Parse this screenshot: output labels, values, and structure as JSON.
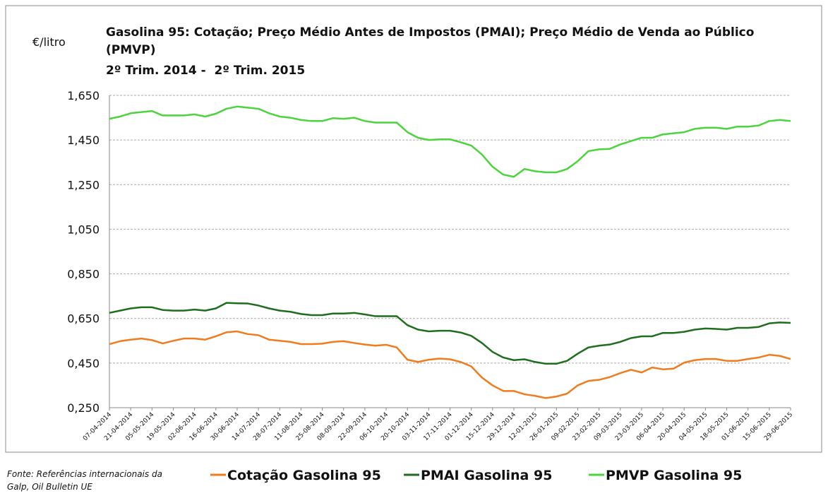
{
  "chart_data": {
    "type": "line",
    "title": "Gasolina 95: Cotação; Preço  Médio Antes de Impostos (PMAI); Preço Médio de Venda ao Público (PMVP)",
    "subtitle": "2º Trim. 2014 -  2º Trim. 2015",
    "y_axis_label": "€/litro",
    "source": "Fonte: Referências internacionais da Galp, Oil Bulletin UE",
    "categories": [
      "07-04-2014",
      null,
      "21-04-2014",
      null,
      "05-05-2014",
      null,
      "19-05-2014",
      null,
      "02-06-2014",
      null,
      "16-06-2014",
      null,
      "30-06-2014",
      null,
      "14-07-2014",
      null,
      "28-07-2014",
      null,
      "11-08-2014",
      null,
      "25-08-2014",
      null,
      "08-09-2014",
      null,
      "22-09-2014",
      null,
      "06-10-2014",
      null,
      "20-10-2014",
      null,
      "03-11-2014",
      null,
      "17-11-2014",
      null,
      "01-12-2014",
      null,
      "15-12-2014",
      null,
      "29-12-2014",
      null,
      "12-01-2015",
      null,
      "26-01-2015",
      null,
      "09-02-2015",
      null,
      "23-02-2015",
      null,
      "09-03-2015",
      null,
      "23-03-2015",
      null,
      "06-04-2015",
      null,
      "20-04-2015",
      null,
      "04-05-2015",
      null,
      "18-05-2015",
      null,
      "01-06-2015",
      null,
      "15-06-2015",
      null,
      "29-06-2015"
    ],
    "series": [
      {
        "name": "Cotação Gasolina 95",
        "color": "#f07c1e",
        "values": [
          0.535,
          0.548,
          0.555,
          0.56,
          0.553,
          0.538,
          0.55,
          0.56,
          0.56,
          0.555,
          0.57,
          0.588,
          0.592,
          0.58,
          0.575,
          0.555,
          0.55,
          0.545,
          0.535,
          0.535,
          0.537,
          0.545,
          0.548,
          0.54,
          0.533,
          0.528,
          0.532,
          0.52,
          0.465,
          0.455,
          0.465,
          0.47,
          0.467,
          0.455,
          0.435,
          0.385,
          0.35,
          0.325,
          0.325,
          0.31,
          0.303,
          0.293,
          0.3,
          0.313,
          0.35,
          0.37,
          0.375,
          0.387,
          0.405,
          0.42,
          0.408,
          0.43,
          0.422,
          0.425,
          0.452,
          0.463,
          0.468,
          0.468,
          0.46,
          0.46,
          0.468,
          0.475,
          0.487,
          0.482,
          0.468
        ]
      },
      {
        "name": "PMAI Gasolina 95",
        "color": "#1e6e1e",
        "values": [
          0.675,
          0.685,
          0.695,
          0.7,
          0.7,
          0.688,
          0.685,
          0.685,
          0.69,
          0.685,
          0.695,
          0.72,
          0.718,
          0.717,
          0.708,
          0.695,
          0.685,
          0.68,
          0.67,
          0.665,
          0.665,
          0.672,
          0.672,
          0.675,
          0.668,
          0.66,
          0.66,
          0.66,
          0.62,
          0.6,
          0.592,
          0.595,
          0.595,
          0.587,
          0.572,
          0.54,
          0.5,
          0.475,
          0.463,
          0.467,
          0.455,
          0.447,
          0.447,
          0.46,
          0.492,
          0.52,
          0.528,
          0.533,
          0.545,
          0.562,
          0.57,
          0.57,
          0.585,
          0.585,
          0.59,
          0.6,
          0.605,
          0.603,
          0.6,
          0.608,
          0.608,
          0.612,
          0.628,
          0.632,
          0.63
        ]
      },
      {
        "name": "PMVP Gasolina 95",
        "color": "#4cd43c",
        "values": [
          1.545,
          1.555,
          1.57,
          1.575,
          1.58,
          1.56,
          1.56,
          1.56,
          1.565,
          1.555,
          1.568,
          1.59,
          1.6,
          1.595,
          1.59,
          1.57,
          1.555,
          1.55,
          1.54,
          1.535,
          1.535,
          1.548,
          1.545,
          1.55,
          1.535,
          1.528,
          1.528,
          1.528,
          1.485,
          1.46,
          1.45,
          1.453,
          1.453,
          1.44,
          1.425,
          1.385,
          1.33,
          1.295,
          1.285,
          1.32,
          1.31,
          1.305,
          1.305,
          1.32,
          1.355,
          1.4,
          1.408,
          1.41,
          1.43,
          1.445,
          1.46,
          1.46,
          1.475,
          1.48,
          1.485,
          1.5,
          1.505,
          1.505,
          1.5,
          1.51,
          1.51,
          1.515,
          1.535,
          1.54,
          1.535
        ]
      }
    ],
    "ylim": [
      0.25,
      1.65
    ],
    "yticks": [
      {
        "value": 0.25,
        "label": "0,250"
      },
      {
        "value": 0.45,
        "label": "0,450"
      },
      {
        "value": 0.65,
        "label": "0,650"
      },
      {
        "value": 0.85,
        "label": "0,850"
      },
      {
        "value": 1.05,
        "label": "1,050"
      },
      {
        "value": 1.25,
        "label": "1,250"
      },
      {
        "value": 1.45,
        "label": "1,450"
      },
      {
        "value": 1.65,
        "label": "1,650"
      }
    ],
    "grid": true,
    "legend": "bottom"
  }
}
